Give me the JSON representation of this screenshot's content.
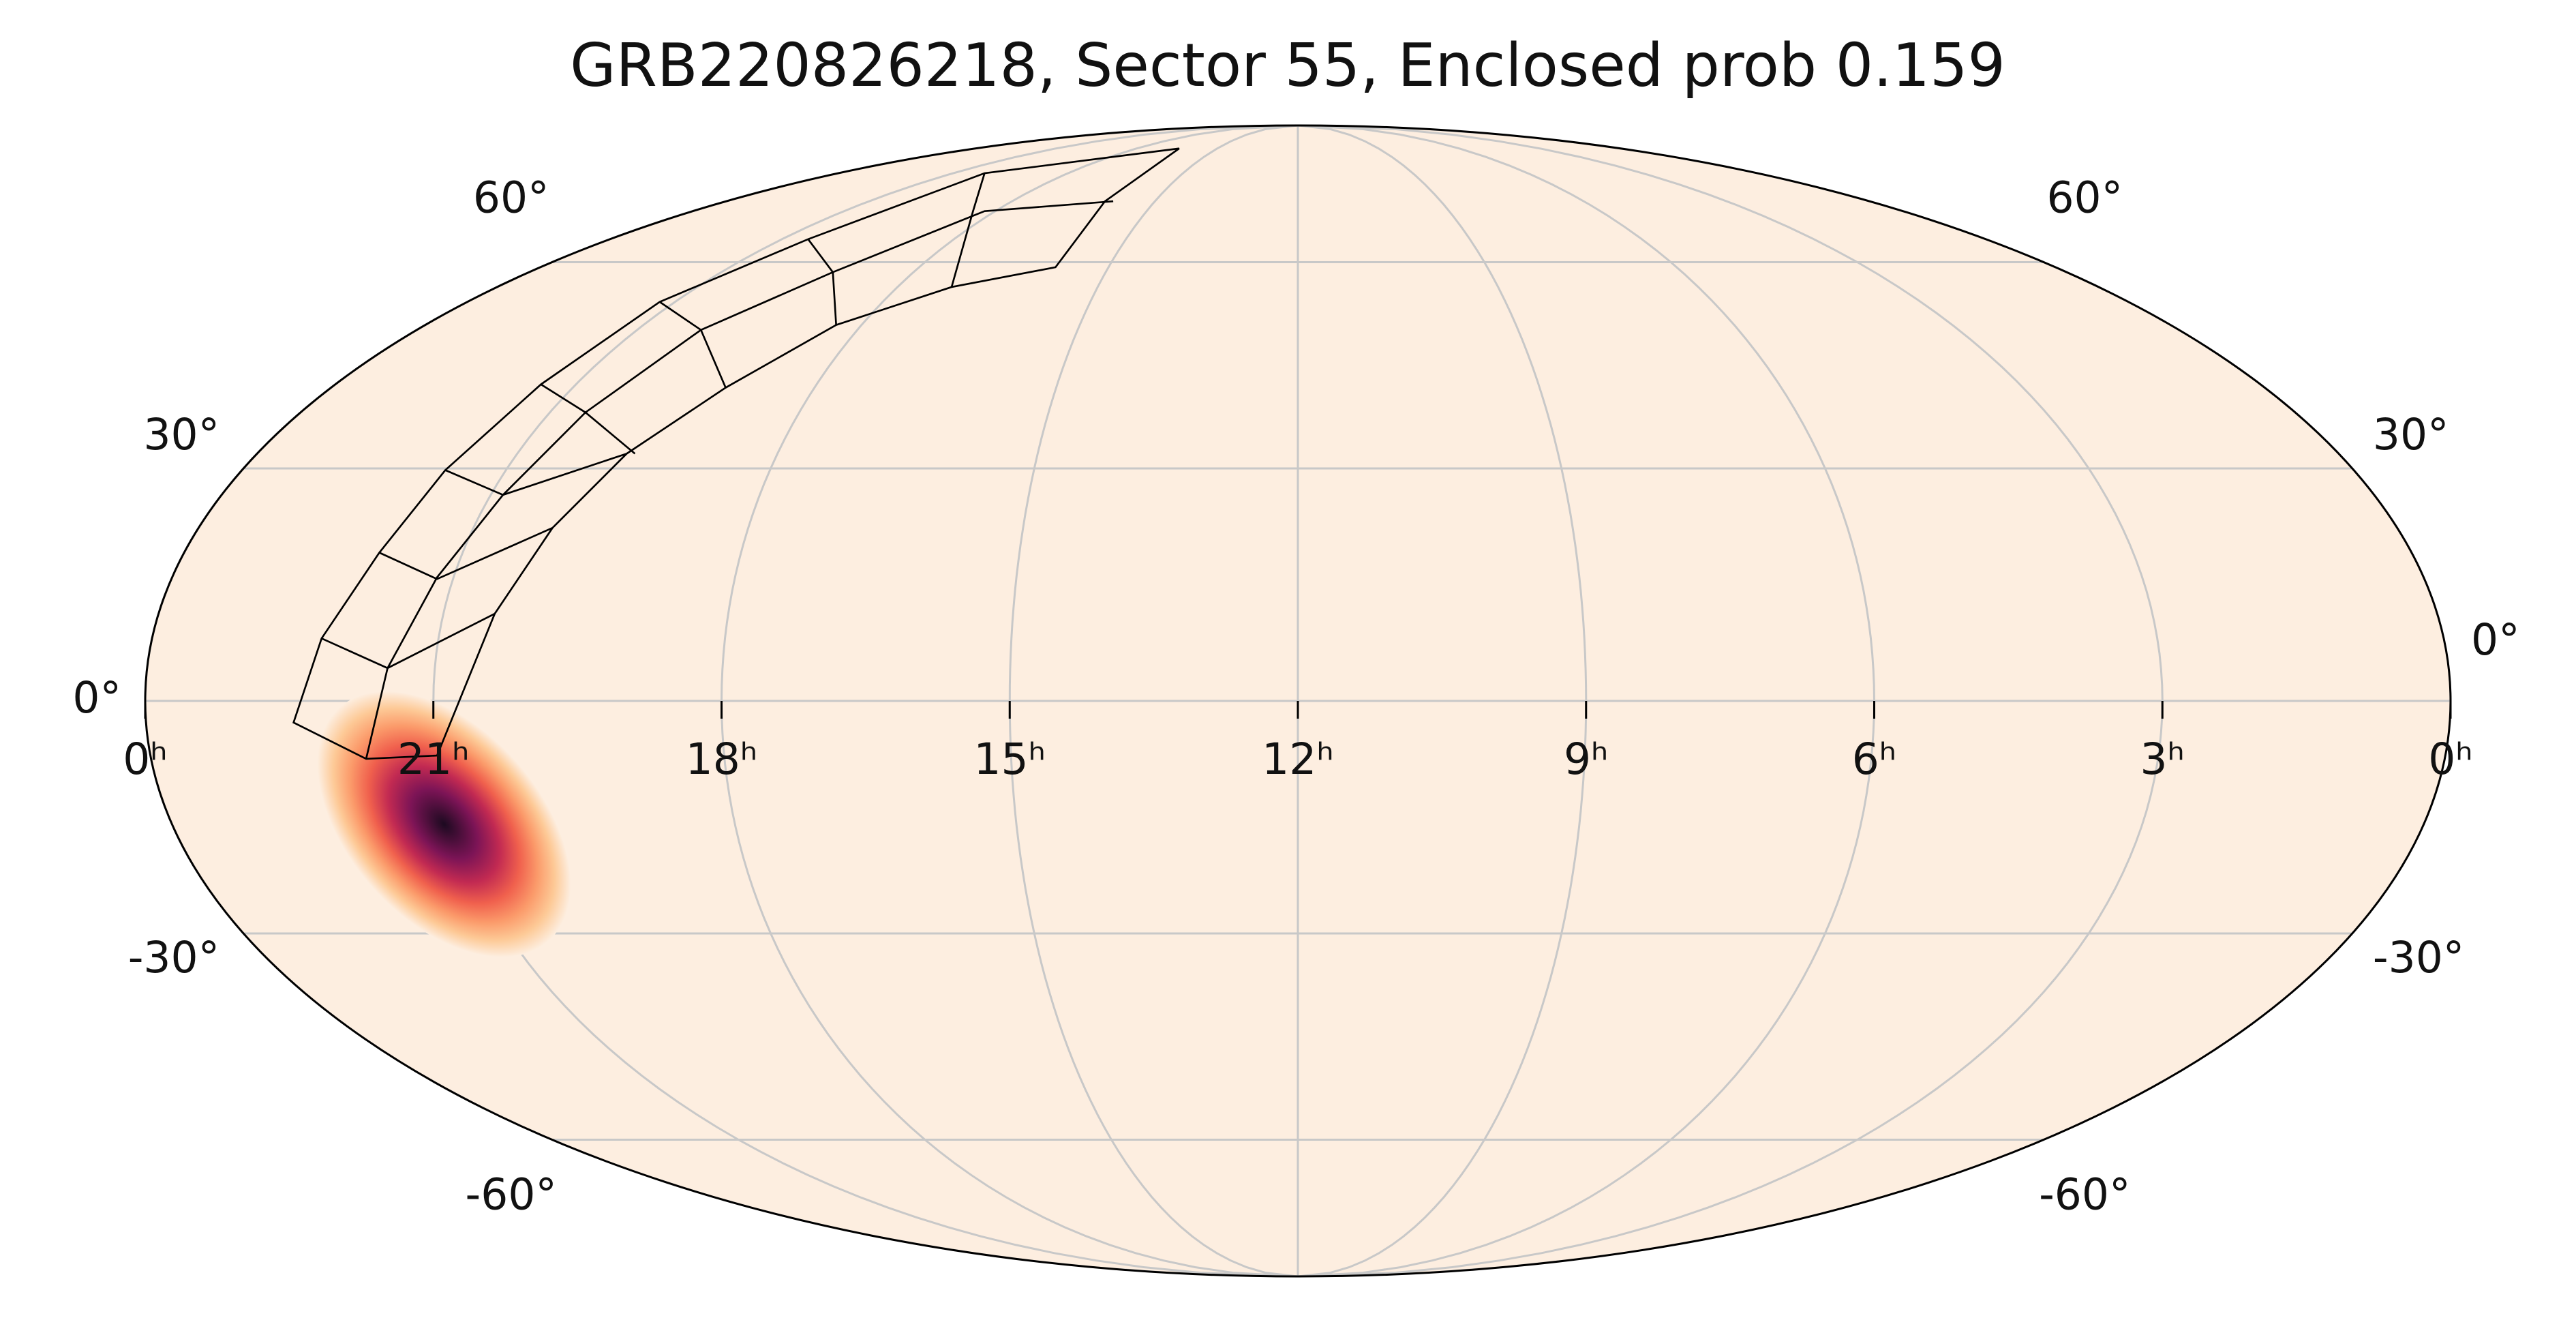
{
  "chart_data": {
    "type": "mollweide",
    "title": "GRB220826218, Sector 55, Enclosed prob 0.159",
    "xlim": [
      24,
      0
    ],
    "xticks": [
      {
        "value": 24,
        "label": "0ʰ"
      },
      {
        "value": 21,
        "label": "21ʰ"
      },
      {
        "value": 18,
        "label": "18ʰ"
      },
      {
        "value": 15,
        "label": "15ʰ"
      },
      {
        "value": 12,
        "label": "12ʰ"
      },
      {
        "value": 9,
        "label": "9ʰ"
      },
      {
        "value": 6,
        "label": "6ʰ"
      },
      {
        "value": 3,
        "label": "3ʰ"
      },
      {
        "value": 0,
        "label": "0ʰ"
      }
    ],
    "ylim": [
      -90,
      90
    ],
    "yticks": [
      {
        "value": -60,
        "label": "-60°"
      },
      {
        "value": -30,
        "label": "-30°"
      },
      {
        "value": 0,
        "label": "0°"
      },
      {
        "value": 30,
        "label": "30°"
      },
      {
        "value": 60,
        "label": "60°"
      }
    ],
    "grid": true,
    "background": "#fdeee0",
    "colormap": [
      "#fdeee0",
      "#fdc996",
      "#fb9a6a",
      "#f0604d",
      "#c22a52",
      "#7c1456",
      "#1c0a20"
    ],
    "peak": {
      "x": 21.1,
      "y": -15.7
    }
  }
}
